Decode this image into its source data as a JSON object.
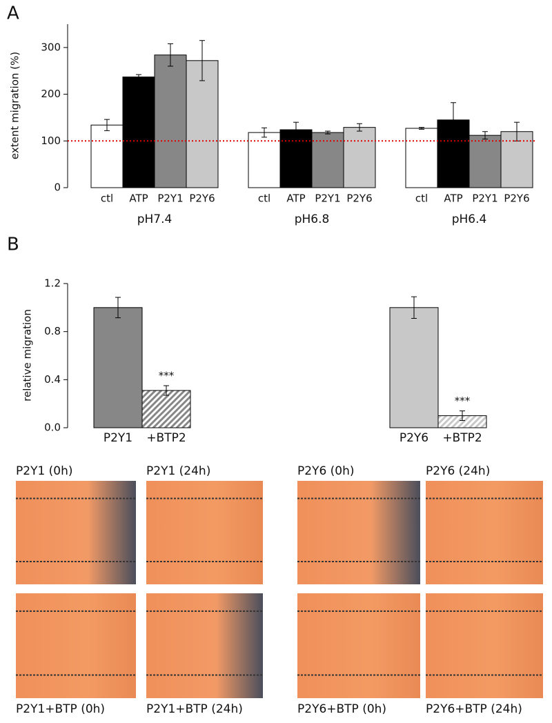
{
  "panel_labels": [
    "A",
    "B"
  ],
  "chart_data": [
    {
      "type": "grouped_bar",
      "y_label": "extent migration (%)",
      "categories": [
        "pH7.4",
        "pH6.8",
        "pH6.4"
      ],
      "series": [
        {
          "name": "ctl",
          "color": "#ffffff",
          "values": [
            134,
            118,
            127
          ],
          "errors": [
            12,
            10,
            2
          ]
        },
        {
          "name": "ATP",
          "color": "#000000",
          "values": [
            237,
            124,
            145
          ],
          "errors": [
            5,
            16,
            37
          ]
        },
        {
          "name": "P2Y1",
          "color": "#878787",
          "values": [
            284,
            118,
            112
          ],
          "errors": [
            24,
            3,
            8
          ]
        },
        {
          "name": "P2Y6",
          "color": "#c8c8c8",
          "values": [
            272,
            129,
            120
          ],
          "errors": [
            43,
            8,
            20
          ]
        }
      ],
      "ylim": [
        0,
        350
      ],
      "yticks": [
        0,
        100,
        200,
        300
      ],
      "reference_line": 100,
      "reference_color": "#e00000"
    },
    {
      "type": "bar",
      "y_label": "relative migration",
      "categories": [
        "P2Y1",
        "+BTP2"
      ],
      "values": [
        1.0,
        0.31
      ],
      "errors": [
        0.085,
        0.04
      ],
      "colors": [
        "#878787",
        "#878787"
      ],
      "hatch": [
        false,
        true
      ],
      "annotations": [
        null,
        "***"
      ],
      "ylim": [
        0,
        1.2
      ],
      "yticks": [
        {
          "value": 0,
          "label": "0.0"
        },
        0.4,
        0.8,
        1.2
      ]
    },
    {
      "type": "bar",
      "categories": [
        "P2Y6",
        "+BTP2"
      ],
      "values": [
        1.0,
        0.1
      ],
      "errors": [
        0.09,
        0.04
      ],
      "colors": [
        "#c8c8c8",
        "#c8c8c8"
      ],
      "hatch": [
        false,
        true
      ],
      "annotations": [
        null,
        "***"
      ],
      "ylim": [
        0,
        1.2
      ]
    }
  ],
  "images": {
    "captions": [
      "P2Y1 (0h)",
      "P2Y1 (24h)",
      "P2Y6 (0h)",
      "P2Y6 (24h)",
      "P2Y1+BTP (0h)",
      "P2Y1+BTP (24h)",
      "P2Y6+BTP (0h)",
      "P2Y6+BTP (24h)"
    ]
  }
}
